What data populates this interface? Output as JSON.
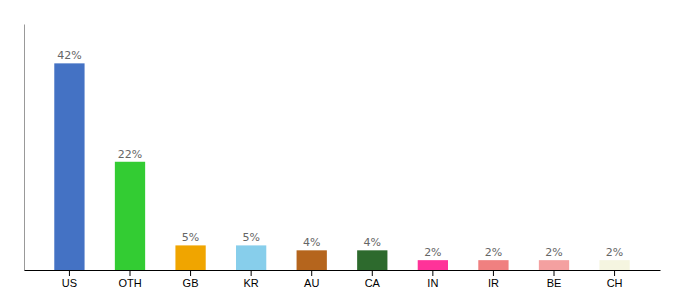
{
  "chart_data": {
    "type": "bar",
    "categories": [
      "US",
      "OTH",
      "GB",
      "KR",
      "AU",
      "CA",
      "IN",
      "IR",
      "BE",
      "CH"
    ],
    "values": [
      42,
      22,
      5,
      5,
      4,
      4,
      2,
      2,
      2,
      2
    ],
    "value_labels": [
      "42%",
      "22%",
      "5%",
      "5%",
      "4%",
      "4%",
      "2%",
      "2%",
      "2%",
      "2%"
    ],
    "colors": [
      "#4472c4",
      "#33cc33",
      "#f0a500",
      "#87ceeb",
      "#b5651d",
      "#2d6a2d",
      "#ff3399",
      "#f08080",
      "#f4a0a0",
      "#f5f5e0"
    ],
    "ylim": [
      0,
      50
    ],
    "data_labels": true,
    "tick_labels": "x"
  }
}
